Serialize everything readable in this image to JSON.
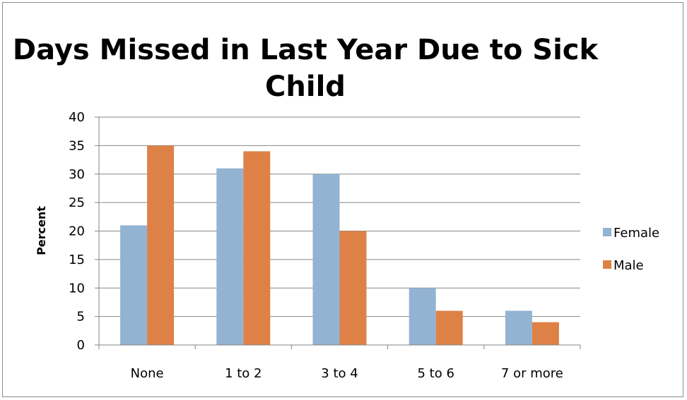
{
  "chart_data": {
    "type": "bar",
    "title_lines": [
      "Days Missed in Last Year Due to Sick",
      "Child"
    ],
    "title": "Days Missed in Last Year Due to Sick Child",
    "xlabel": "",
    "ylabel": "Percent",
    "ylim": [
      0,
      40
    ],
    "yticks": [
      0,
      5,
      10,
      15,
      20,
      25,
      30,
      35,
      40
    ],
    "categories": [
      "None",
      "1 to 2",
      "3 to 4",
      "5 to 6",
      "7 or more"
    ],
    "series": [
      {
        "name": "Female",
        "color": "#93b3d2",
        "values": [
          21,
          31,
          30,
          10,
          6
        ]
      },
      {
        "name": "Male",
        "color": "#de8147",
        "values": [
          35,
          34,
          20,
          6,
          4
        ]
      }
    ],
    "grid": true,
    "legend_position": "right"
  }
}
